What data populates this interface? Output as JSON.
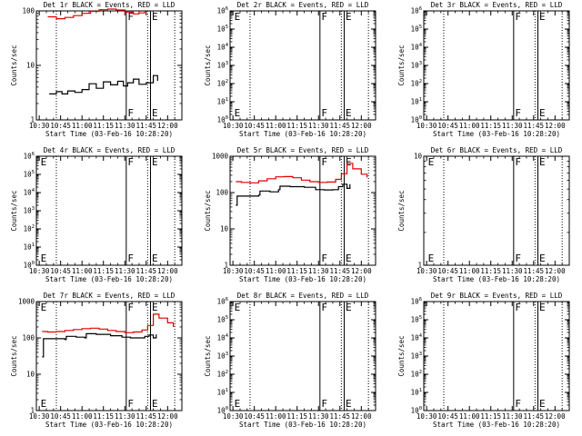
{
  "figure": {
    "xlabel": "Start Time (03-Feb-16 10:28:20)",
    "ylabel": "Counts/sec",
    "colors": {
      "events": "#000000",
      "lld": "#e00000",
      "frame": "#000000"
    }
  },
  "chart_data": [
    {
      "type": "line",
      "title": "Det 1r BLACK = Events, RED = LLD",
      "xlabel": "Start Time (03-Feb-16 10:28:20)",
      "ylabel": "Counts/sec",
      "x_ticks": [
        "10:30",
        "10:45",
        "11:00",
        "11:15",
        "11:30",
        "11:45",
        "12:00"
      ],
      "y_scale": "log",
      "ylim": [
        1,
        100
      ],
      "y_ticks": [
        "1",
        "10",
        "100"
      ],
      "markers": [
        {
          "x": "11:31",
          "label": "F",
          "style": "solid"
        },
        {
          "x": "11:48",
          "label": "E",
          "style": "solid"
        }
      ],
      "dotted_lines": [
        "10:42",
        "11:46",
        "12:05"
      ],
      "series": [
        {
          "name": "Events",
          "color": "#000000",
          "x": [
            "10:37",
            "10:42",
            "10:46",
            "10:50",
            "10:55",
            "11:00",
            "11:05",
            "11:10",
            "11:15",
            "11:20",
            "11:25",
            "11:29",
            "11:32",
            "11:36",
            "11:40",
            "11:45",
            "11:50",
            "11:53"
          ],
          "y": [
            3,
            3.3,
            3,
            3.4,
            3.2,
            3.6,
            4.6,
            3.8,
            5,
            4.4,
            5.1,
            4.2,
            4.8,
            5.6,
            4.5,
            4.8,
            6.5,
            5.2
          ]
        },
        {
          "name": "LLD",
          "color": "#e00000",
          "x": [
            "10:36",
            "10:42",
            "10:48",
            "10:54",
            "11:00",
            "11:06",
            "11:12",
            "11:18",
            "11:24",
            "11:30",
            "11:36",
            "11:40",
            "11:44"
          ],
          "y": [
            78,
            72,
            76,
            82,
            90,
            98,
            105,
            108,
            104,
            95,
            88,
            92,
            100
          ]
        }
      ]
    },
    {
      "type": "line",
      "title": "Det 2r BLACK = Events, RED = LLD",
      "xlabel": "Start Time (03-Feb-16 10:28:20)",
      "ylabel": "Counts/sec",
      "x_ticks": [
        "10:30",
        "10:45",
        "11:00",
        "11:15",
        "11:30",
        "11:45",
        "12:00"
      ],
      "y_scale": "log",
      "ylim": [
        1,
        1000000
      ],
      "y_ticks": [
        "10^0",
        "10^1",
        "10^2",
        "10^3",
        "10^4",
        "10^5",
        "10^6"
      ],
      "markers": [
        {
          "x": "10:30",
          "label": "E",
          "style": "none"
        },
        {
          "x": "11:31",
          "label": "F",
          "style": "solid"
        },
        {
          "x": "11:48",
          "label": "E",
          "style": "solid"
        }
      ],
      "dotted_lines": [
        "10:42",
        "11:46",
        "12:05"
      ],
      "series": []
    },
    {
      "type": "line",
      "title": "Det 3r BLACK = Events, RED = LLD",
      "xlabel": "Start Time (03-Feb-16 10:28:20)",
      "ylabel": "Counts/sec",
      "x_ticks": [
        "10:30",
        "10:45",
        "11:00",
        "11:15",
        "11:30",
        "11:45",
        "12:00"
      ],
      "y_scale": "log",
      "ylim": [
        1,
        1000000
      ],
      "y_ticks": [
        "10^0",
        "10^1",
        "10^2",
        "10^3",
        "10^4",
        "10^5",
        "10^6"
      ],
      "markers": [
        {
          "x": "11:31",
          "label": "F",
          "style": "solid"
        },
        {
          "x": "11:48",
          "label": "E",
          "style": "solid"
        }
      ],
      "dotted_lines": [
        "10:42",
        "11:46",
        "12:05"
      ],
      "series": []
    },
    {
      "type": "line",
      "title": "Det 4r BLACK = Events, RED = LLD",
      "xlabel": "Start Time (03-Feb-16 10:28:20)",
      "ylabel": "Counts/sec",
      "x_ticks": [
        "10:30",
        "10:45",
        "11:00",
        "11:15",
        "11:30",
        "11:45",
        "12:00"
      ],
      "y_scale": "log",
      "ylim": [
        1,
        1000000
      ],
      "y_ticks": [
        "10^0",
        "10^1",
        "10^2",
        "10^3",
        "10^4",
        "10^5",
        "10^6"
      ],
      "markers": [
        {
          "x": "10:30",
          "label": "E",
          "style": "none"
        },
        {
          "x": "11:31",
          "label": "F",
          "style": "solid"
        },
        {
          "x": "11:48",
          "label": "E",
          "style": "solid"
        }
      ],
      "dotted_lines": [
        "10:42",
        "11:46",
        "12:05"
      ],
      "series": []
    },
    {
      "type": "line",
      "title": "Det 5r BLACK = Events, RED = LLD",
      "xlabel": "Start Time (03-Feb-16 10:28:20)",
      "ylabel": "Counts/sec",
      "x_ticks": [
        "10:30",
        "10:45",
        "11:00",
        "11:15",
        "11:30",
        "11:45",
        "12:00"
      ],
      "y_scale": "log",
      "ylim": [
        1,
        1000
      ],
      "y_ticks": [
        "1",
        "10",
        "100",
        "1000"
      ],
      "markers": [
        {
          "x": "11:31",
          "label": "F",
          "style": "solid"
        },
        {
          "x": "11:48",
          "label": "E",
          "style": "solid"
        }
      ],
      "dotted_lines": [
        "10:42",
        "11:46",
        "12:05"
      ],
      "series": [
        {
          "name": "Events",
          "color": "#000000",
          "x": [
            "10:32",
            "10:33",
            "10:40",
            "10:48",
            "10:49",
            "10:56",
            "11:02",
            "11:03",
            "11:10",
            "11:20",
            "11:28",
            "11:34",
            "11:40",
            "11:44",
            "11:47",
            "11:50",
            "11:52"
          ],
          "y": [
            45,
            80,
            80,
            85,
            110,
            105,
            120,
            150,
            145,
            140,
            120,
            118,
            120,
            145,
            170,
            130,
            170
          ]
        },
        {
          "name": "LLD",
          "color": "#e00000",
          "x": [
            "10:32",
            "10:36",
            "10:42",
            "10:48",
            "10:54",
            "11:00",
            "11:06",
            "11:12",
            "11:18",
            "11:24",
            "11:30",
            "11:36",
            "11:42",
            "11:46",
            "11:50",
            "11:54",
            "12:00",
            "12:04"
          ],
          "y": [
            200,
            190,
            185,
            210,
            240,
            270,
            275,
            255,
            220,
            200,
            190,
            195,
            230,
            330,
            640,
            450,
            320,
            260
          ]
        }
      ]
    },
    {
      "type": "line",
      "title": "Det 6r BLACK = Events, RED = LLD",
      "xlabel": "Start Time (03-Feb-16 10:28:20)",
      "ylabel": "Counts/sec",
      "x_ticks": [
        "10:30",
        "10:45",
        "11:00",
        "11:15",
        "11:30",
        "11:45",
        "12:00"
      ],
      "y_scale": "log",
      "ylim": [
        1,
        10
      ],
      "y_ticks": [
        "1",
        "10"
      ],
      "markers": [
        {
          "x": "10:30",
          "label": "E",
          "style": "none"
        },
        {
          "x": "11:31",
          "label": "F",
          "style": "solid"
        },
        {
          "x": "11:48",
          "label": "E",
          "style": "solid"
        }
      ],
      "dotted_lines": [
        "10:42",
        "11:46",
        "12:05"
      ],
      "series": []
    },
    {
      "type": "line",
      "title": "Det 7r BLACK = Events, RED = LLD",
      "xlabel": "Start Time (03-Feb-16 10:28:20)",
      "ylabel": "Counts/sec",
      "x_ticks": [
        "10:30",
        "10:45",
        "11:00",
        "11:15",
        "11:30",
        "11:45",
        "12:00"
      ],
      "y_scale": "log",
      "ylim": [
        1,
        1000
      ],
      "y_ticks": [
        "1",
        "10",
        "100",
        "1000"
      ],
      "markers": [
        {
          "x": "10:30",
          "label": "E",
          "style": "none"
        },
        {
          "x": "11:31",
          "label": "F",
          "style": "solid"
        },
        {
          "x": "11:48",
          "label": "E",
          "style": "solid"
        }
      ],
      "dotted_lines": [
        "10:42",
        "11:46",
        "12:05"
      ],
      "series": [
        {
          "name": "Events",
          "color": "#000000",
          "x": [
            "10:32",
            "10:33",
            "10:40",
            "10:48",
            "10:49",
            "10:56",
            "11:02",
            "11:03",
            "11:10",
            "11:20",
            "11:28",
            "11:34",
            "11:40",
            "11:44",
            "11:47",
            "11:50",
            "11:52"
          ],
          "y": [
            30,
            95,
            95,
            90,
            110,
            105,
            100,
            130,
            125,
            115,
            105,
            100,
            100,
            110,
            120,
            100,
            125
          ]
        },
        {
          "name": "LLD",
          "color": "#e00000",
          "x": [
            "10:32",
            "10:36",
            "10:42",
            "10:48",
            "10:54",
            "11:00",
            "11:06",
            "11:12",
            "11:18",
            "11:24",
            "11:30",
            "11:36",
            "11:42",
            "11:46",
            "11:50",
            "11:54",
            "12:00",
            "12:04"
          ],
          "y": [
            150,
            145,
            150,
            160,
            170,
            180,
            185,
            175,
            160,
            150,
            140,
            145,
            165,
            220,
            450,
            350,
            260,
            200
          ]
        }
      ]
    },
    {
      "type": "line",
      "title": "Det 8r BLACK = Events, RED = LLD",
      "xlabel": "Start Time (03-Feb-16 10:28:20)",
      "ylabel": "Counts/sec",
      "x_ticks": [
        "10:30",
        "10:45",
        "11:00",
        "11:15",
        "11:30",
        "11:45",
        "12:00"
      ],
      "y_scale": "log",
      "ylim": [
        1,
        1000000
      ],
      "y_ticks": [
        "10^0",
        "10^1",
        "10^2",
        "10^3",
        "10^4",
        "10^5",
        "10^6"
      ],
      "markers": [
        {
          "x": "10:30",
          "label": "E",
          "style": "none"
        },
        {
          "x": "11:31",
          "label": "F",
          "style": "solid"
        },
        {
          "x": "11:48",
          "label": "E",
          "style": "solid"
        }
      ],
      "dotted_lines": [
        "10:42",
        "11:46",
        "12:05"
      ],
      "series": []
    },
    {
      "type": "line",
      "title": "Det 9r BLACK = Events, RED = LLD",
      "xlabel": "Start Time (03-Feb-16 10:28:20)",
      "ylabel": "Counts/sec",
      "x_ticks": [
        "10:30",
        "10:45",
        "11:00",
        "11:15",
        "11:30",
        "11:45",
        "12:00"
      ],
      "y_scale": "log",
      "ylim": [
        1,
        1000000
      ],
      "y_ticks": [
        "10^0",
        "10^1",
        "10^2",
        "10^3",
        "10^4",
        "10^5",
        "10^6"
      ],
      "markers": [
        {
          "x": "11:31",
          "label": "F",
          "style": "solid"
        },
        {
          "x": "11:48",
          "label": "E",
          "style": "solid"
        }
      ],
      "dotted_lines": [
        "10:42",
        "11:46",
        "12:05"
      ],
      "series": []
    }
  ]
}
